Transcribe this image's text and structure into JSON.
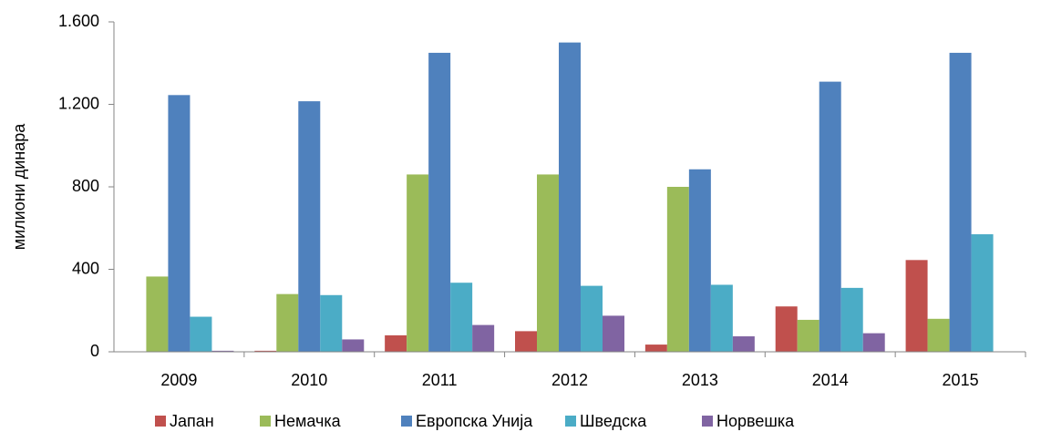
{
  "chart_data": {
    "type": "bar",
    "y_label": "милиони динара",
    "categories": [
      "2009",
      "2010",
      "2011",
      "2012",
      "2013",
      "2014",
      "2015"
    ],
    "series": [
      {
        "name": "Јапан",
        "color": "#c0504d",
        "values": [
          0,
          5,
          80,
          100,
          35,
          220,
          445
        ]
      },
      {
        "name": "Немачка",
        "color": "#9bbb59",
        "values": [
          365,
          280,
          860,
          860,
          800,
          155,
          160
        ]
      },
      {
        "name": "Европска Унија",
        "color": "#4f81bd",
        "values": [
          1245,
          1215,
          1450,
          1500,
          885,
          1310,
          1450
        ]
      },
      {
        "name": "Шведска",
        "color": "#4bacc6",
        "values": [
          170,
          275,
          335,
          320,
          325,
          310,
          570
        ]
      },
      {
        "name": "Норвешка",
        "color": "#8064a2",
        "values": [
          5,
          60,
          130,
          175,
          75,
          90,
          0
        ]
      }
    ],
    "ylim": [
      0,
      1600
    ],
    "yticks": [
      0,
      400,
      800,
      {
        "value": 1200,
        "label": "1.200"
      },
      {
        "value": 1600,
        "label": "1.600"
      }
    ],
    "grid": false,
    "legend": "bottom"
  }
}
